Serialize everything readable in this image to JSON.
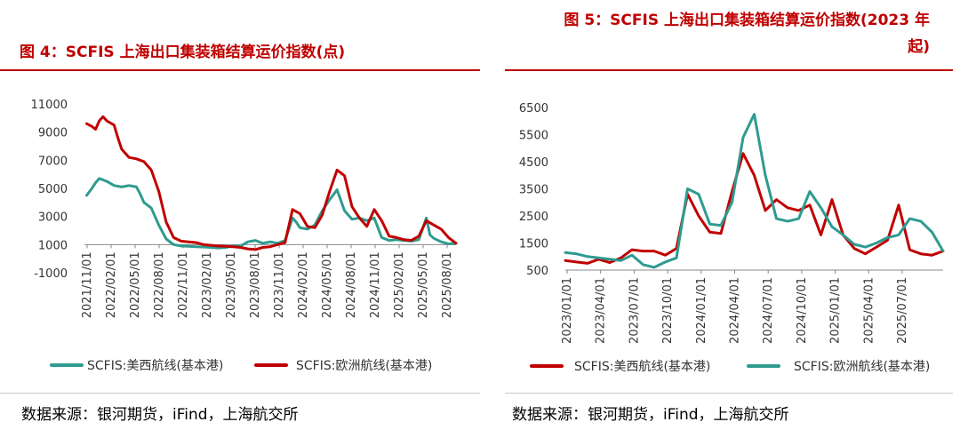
{
  "chart_data": [
    {
      "type": "line",
      "title": "图 4：SCFIS 上海出口集装箱结算运价指数(点)",
      "ylim": [
        -1000,
        11000
      ],
      "yticks": [
        "11000",
        "9000",
        "7000",
        "5000",
        "3000",
        "1000",
        "-1000"
      ],
      "xticks": [
        "2021/11/01",
        "2022/02/01",
        "2022/05/01",
        "2022/08/01",
        "2022/11/01",
        "2023/02/01",
        "2023/05/01",
        "2023/08/01",
        "2023/11/01",
        "2024/02/01",
        "2024/05/01",
        "2024/08/01",
        "2024/11/01",
        "2025/02/01",
        "2025/05/01",
        "2025/08/01"
      ],
      "series": [
        {
          "name": "SCFIS:美西航线(基本港)",
          "color": "#2e9b8f",
          "x": [
            0.3,
            1.0,
            1.5,
            2.0,
            3.0,
            4.0,
            5.0,
            6.0,
            7.0,
            7.5,
            8.0,
            9.0,
            10.0,
            11.0,
            12.0,
            13.0,
            14.0,
            15.0,
            16.0,
            17.0,
            18.0,
            19.0,
            20.0,
            21.0,
            22.0,
            23.0,
            24.0,
            25.0,
            26.0,
            27.0,
            28.0,
            28.5,
            29.0,
            30.0,
            31.0,
            32.0,
            33.0,
            34.0,
            35.0,
            36.0,
            37.0,
            38.0,
            39.0,
            40.0,
            41.0,
            42.0,
            43.0,
            44.0,
            45.0,
            46.0,
            46.5,
            47.0,
            48.0,
            49.0,
            50.0
          ],
          "values": [
            4500,
            5000,
            5400,
            5700,
            5500,
            5200,
            5100,
            5200,
            5100,
            4600,
            4000,
            3600,
            2400,
            1400,
            1000,
            900,
            880,
            850,
            830,
            800,
            760,
            800,
            900,
            900,
            1200,
            1300,
            1100,
            1200,
            1100,
            1300,
            2900,
            2600,
            2200,
            2100,
            2400,
            3400,
            4200,
            4900,
            3400,
            2800,
            2900,
            2700,
            2900,
            1500,
            1300,
            1350,
            1300,
            1250,
            1350,
            2900,
            1700,
            1450,
            1200,
            1050,
            1100
          ]
        },
        {
          "name": "SCFIS:欧洲航线(基本港)",
          "color": "#c00000",
          "x": [
            0.3,
            1.0,
            1.5,
            2.0,
            2.5,
            3.0,
            4.0,
            4.5,
            5.0,
            6.0,
            7.0,
            8.0,
            9.0,
            10.0,
            11.0,
            12.0,
            13.0,
            14.0,
            15.0,
            16.0,
            17.0,
            18.0,
            19.0,
            20.0,
            21.0,
            22.0,
            23.0,
            24.0,
            25.0,
            26.0,
            27.0,
            28.0,
            29.0,
            30.0,
            31.0,
            32.0,
            33.0,
            34.0,
            35.0,
            36.0,
            37.0,
            38.0,
            39.0,
            40.0,
            41.0,
            42.0,
            43.0,
            44.0,
            45.0,
            46.0,
            47.0,
            48.0,
            49.0,
            50.0
          ],
          "values": [
            9600,
            9400,
            9200,
            9800,
            10100,
            9800,
            9500,
            8600,
            7800,
            7200,
            7100,
            6900,
            6300,
            4800,
            2600,
            1500,
            1250,
            1200,
            1150,
            1000,
            950,
            900,
            880,
            850,
            800,
            700,
            650,
            800,
            850,
            1000,
            1150,
            3500,
            3200,
            2300,
            2200,
            3100,
            4800,
            6300,
            5900,
            3700,
            2900,
            2300,
            3500,
            2700,
            1600,
            1500,
            1350,
            1300,
            1600,
            2700,
            2400,
            2100,
            1500,
            1100
          ]
        }
      ],
      "legend": "bottom"
    },
    {
      "type": "line",
      "title": "图 5：SCFIS 上海出口集装箱结算运价指数(2023 年起)",
      "ylim": [
        500,
        6500
      ],
      "yticks": [
        "6500",
        "5500",
        "4500",
        "3500",
        "2500",
        "1500",
        "500"
      ],
      "xticks": [
        "2023/01/01",
        "2023/04/01",
        "2023/07/01",
        "2023/10/01",
        "2024/01/01",
        "2024/04/01",
        "2024/07/01",
        "2024/10/01",
        "2025/01/01",
        "2025/04/01",
        "2025/07/01"
      ],
      "series": [
        {
          "name": "SCFIS:美西航线(基本港)",
          "color": "#c00000",
          "x": [
            0.0,
            1.0,
            2.0,
            3.0,
            4.0,
            5.0,
            6.0,
            7.0,
            8.0,
            9.0,
            10.0,
            11.0,
            12.0,
            13.0,
            14.0,
            15.0,
            16.0,
            17.0,
            18.0,
            19.0,
            20.0,
            21.0,
            22.0,
            23.0,
            24.0,
            25.0,
            26.0,
            27.0,
            28.0,
            29.0,
            30.0,
            31.0,
            32.0,
            33.0,
            34.0
          ],
          "values": [
            850,
            800,
            750,
            900,
            780,
            950,
            1250,
            1200,
            1200,
            1050,
            1300,
            3300,
            2500,
            1900,
            1850,
            3400,
            4800,
            4000,
            2700,
            3100,
            2800,
            2700,
            2900,
            1800,
            3100,
            1800,
            1300,
            1100,
            1350,
            1600,
            2900,
            1250,
            1100,
            1050,
            1200
          ]
        },
        {
          "name": "SCFIS:欧洲航线(基本港)",
          "color": "#2e9b8f",
          "x": [
            0.0,
            1.0,
            2.0,
            3.0,
            4.0,
            5.0,
            6.0,
            7.0,
            8.0,
            9.0,
            10.0,
            11.0,
            12.0,
            13.0,
            14.0,
            15.0,
            16.0,
            17.0,
            18.0,
            19.0,
            20.0,
            21.0,
            22.0,
            23.0,
            24.0,
            25.0,
            26.0,
            27.0,
            28.0,
            29.0,
            30.0,
            31.0,
            32.0,
            33.0,
            34.0
          ],
          "values": [
            1150,
            1100,
            1000,
            950,
            900,
            850,
            1050,
            700,
            600,
            800,
            950,
            3500,
            3300,
            2200,
            2150,
            3000,
            5400,
            6250,
            4000,
            2400,
            2300,
            2400,
            3400,
            2800,
            2100,
            1800,
            1450,
            1350,
            1500,
            1700,
            1800,
            2400,
            2300,
            1900,
            1200
          ]
        }
      ],
      "legend": "bottom"
    }
  ],
  "left_panel": {
    "title": "图 4：SCFIS 上海出口集装箱结算运价指数(点)",
    "source": "数据来源：银河期货，iFind，上海航交所"
  },
  "right_panel": {
    "title_line1": "图 5：SCFIS 上海出口集装箱结算运价指数(2023 年",
    "title_line2": "起)",
    "source": "数据来源：银河期货，iFind，上海航交所"
  }
}
